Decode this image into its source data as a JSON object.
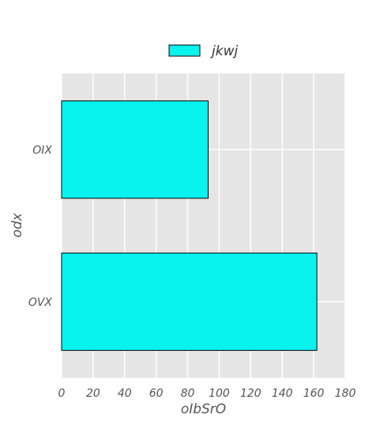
{
  "chart_data": {
    "type": "bar",
    "orientation": "horizontal",
    "categories": [
      "OVX",
      "OIX"
    ],
    "series": [
      {
        "name": "jkwj",
        "values": [
          162,
          93
        ]
      }
    ],
    "xlabel": "oIbSrO",
    "ylabel": "odx",
    "xlim": [
      0,
      180
    ],
    "xticks": [
      0,
      20,
      40,
      60,
      80,
      100,
      120,
      140,
      160,
      180
    ],
    "grid": true,
    "legend_position": "top-center",
    "colors": {
      "bar_fill": "#08f2ee",
      "bar_edge": "#000000",
      "plot_background": "#e5e5e5",
      "grid": "#ffffff"
    }
  }
}
